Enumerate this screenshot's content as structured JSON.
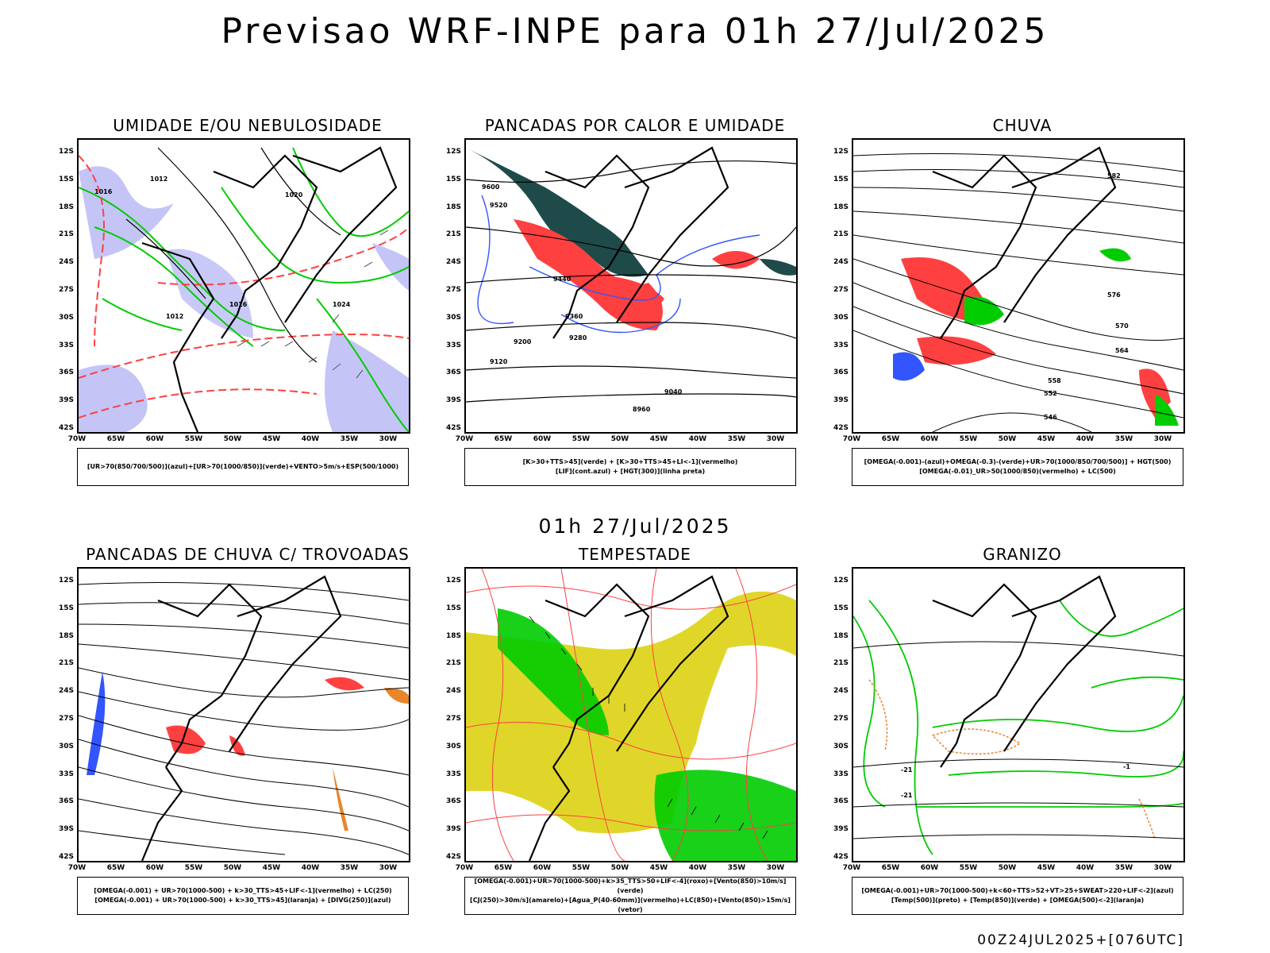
{
  "title": "Previsao WRF-INPE  para 01h 27/Jul/2025",
  "mid_date": "01h 27/Jul/2025",
  "footer": "00Z24JUL2025+[076UTC]",
  "lat_labels": [
    "12S",
    "15S",
    "18S",
    "21S",
    "24S",
    "27S",
    "30S",
    "33S",
    "36S",
    "39S",
    "42S"
  ],
  "lon_labels": [
    "70W",
    "65W",
    "60W",
    "55W",
    "50W",
    "45W",
    "40W",
    "35W",
    "30W"
  ],
  "panels": [
    {
      "id": "umidade",
      "title": "UMIDADE E/OU NEBULOSIDADE",
      "legend": [
        "[UR>70(850/700/500)](azul)+[UR>70(1000/850)](verde)+VENTO>5m/s+ESP(500/1000)"
      ],
      "contour_labels": [
        "1012",
        "1016",
        "1020",
        "1024",
        "1012",
        "1016"
      ]
    },
    {
      "id": "pancadas-calor",
      "title": "PANCADAS POR CALOR E UMIDADE",
      "legend": [
        "[K>30+TTS>45](verde) + [K>30+TTS>45+LI<-1](vermelho)",
        "[LIF](cont.azul) + [HGT(300)](linha preta)"
      ],
      "contour_labels": [
        "9600",
        "9520",
        "9440",
        "9360",
        "9280",
        "9200",
        "9120",
        "9040",
        "8960"
      ]
    },
    {
      "id": "chuva",
      "title": "CHUVA",
      "legend": [
        "[OMEGA(-0.001)-(azul)+OMEGA(-0.3)-(verde)+UR>70(1000/850/700/500)] + HGT(500)",
        "[OMEGA(-0.01)_UR>50(1000/850)(vermelho) + LC(500)"
      ],
      "contour_labels": [
        "582",
        "576",
        "570",
        "564",
        "558",
        "552",
        "546"
      ]
    },
    {
      "id": "pancadas-trovoadas",
      "title": "PANCADAS DE CHUVA C/ TROVOADAS",
      "legend": [
        "[OMEGA(-0.001) + UR>70(1000-500) + k>30_TTS>45+LIF<-1](vermelho) + LC(250)",
        "[OMEGA(-0.001) + UR>70(1000-500) + k>30_TTS>45](laranja) + [DIVG(250)](azul)"
      ],
      "contour_labels": []
    },
    {
      "id": "tempestade",
      "title": "TEMPESTADE",
      "legend": [
        "[OMEGA(-0.001)+UR>70(1000-500)+k>35_TTS>50+LIF<-4](roxo)+[Vento(850)>10m/s](verde)",
        "[CJ(250)>30m/s](amarelo)+[Agua_P(40-60mm)](vermelho)+LC(850)+[Vento(850)>15m/s](vetor)"
      ],
      "contour_labels": []
    },
    {
      "id": "granizo",
      "title": "GRANIZO",
      "legend": [
        "[OMEGA(-0.001)+UR>70(1000-500)+k<60+TTS>52+VT>25+SWEAT>220+LIF<-2](azul)",
        "[Temp(500)](preto) + [Temp(850)](verde) + [OMEGA(500)<-2](laranja)"
      ],
      "contour_labels": [
        "-21",
        "-21",
        "-1"
      ]
    }
  ],
  "colors": {
    "blue_humidity": "#9c9cf2",
    "green": "#00cc00",
    "red": "#ff4040",
    "dark_teal": "#1f4a4a",
    "yellow": "#e0d62a",
    "orange": "#e8862a",
    "contour_blue": "#3355ff"
  }
}
